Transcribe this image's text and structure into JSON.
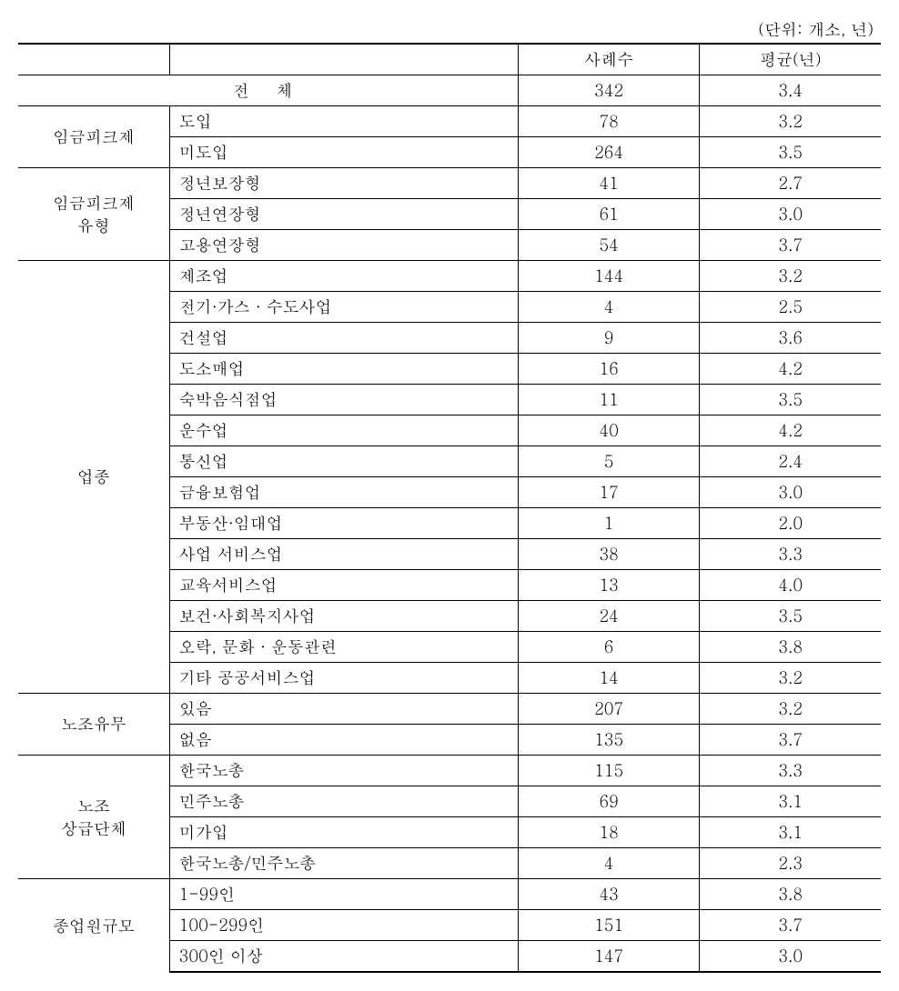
{
  "unit_label": "(단위: 개소, 년)",
  "headers": {
    "count": "사례수",
    "avg": "평균(년)"
  },
  "total": {
    "label": "전  체",
    "count": "342",
    "avg": "3.4"
  },
  "groups": [
    {
      "name": "임금피크제",
      "rows": [
        {
          "label": "도입",
          "count": "78",
          "avg": "3.2"
        },
        {
          "label": "미도입",
          "count": "264",
          "avg": "3.5"
        }
      ]
    },
    {
      "name": "임금피크제\n유형",
      "rows": [
        {
          "label": "정년보장형",
          "count": "41",
          "avg": "2.7"
        },
        {
          "label": "정년연장형",
          "count": "61",
          "avg": "3.0"
        },
        {
          "label": "고용연장형",
          "count": "54",
          "avg": "3.7"
        }
      ]
    },
    {
      "name": "업종",
      "rows": [
        {
          "label": "제조업",
          "count": "144",
          "avg": "3.2"
        },
        {
          "label": "전기·가스 · 수도사업",
          "count": "4",
          "avg": "2.5"
        },
        {
          "label": "건설업",
          "count": "9",
          "avg": "3.6"
        },
        {
          "label": "도소매업",
          "count": "16",
          "avg": "4.2"
        },
        {
          "label": "숙박음식점업",
          "count": "11",
          "avg": "3.5"
        },
        {
          "label": "운수업",
          "count": "40",
          "avg": "4.2"
        },
        {
          "label": "통신업",
          "count": "5",
          "avg": "2.4"
        },
        {
          "label": "금융보험업",
          "count": "17",
          "avg": "3.0"
        },
        {
          "label": "부동산·임대업",
          "count": "1",
          "avg": "2.0"
        },
        {
          "label": "사업 서비스업",
          "count": "38",
          "avg": "3.3"
        },
        {
          "label": "교육서비스업",
          "count": "13",
          "avg": "4.0"
        },
        {
          "label": "보건·사회복지사업",
          "count": "24",
          "avg": "3.5"
        },
        {
          "label": "오락, 문화 · 운동관련",
          "count": "6",
          "avg": "3.8"
        },
        {
          "label": "기타 공공서비스업",
          "count": "14",
          "avg": "3.2"
        }
      ]
    },
    {
      "name": "노조유무",
      "rows": [
        {
          "label": "있음",
          "count": "207",
          "avg": "3.2"
        },
        {
          "label": "없음",
          "count": "135",
          "avg": "3.7"
        }
      ]
    },
    {
      "name": "노조\n상급단체",
      "rows": [
        {
          "label": "한국노총",
          "count": "115",
          "avg": "3.3"
        },
        {
          "label": "민주노총",
          "count": "69",
          "avg": "3.1"
        },
        {
          "label": "미가입",
          "count": "18",
          "avg": "3.1"
        },
        {
          "label": "한국노총/민주노총",
          "count": "4",
          "avg": "2.3"
        }
      ]
    },
    {
      "name": "종업원규모",
      "rows": [
        {
          "label": "1-99인",
          "count": "43",
          "avg": "3.8"
        },
        {
          "label": "100-299인",
          "count": "151",
          "avg": "3.7"
        },
        {
          "label": "300인 이상",
          "count": "147",
          "avg": "3.0"
        }
      ]
    }
  ]
}
